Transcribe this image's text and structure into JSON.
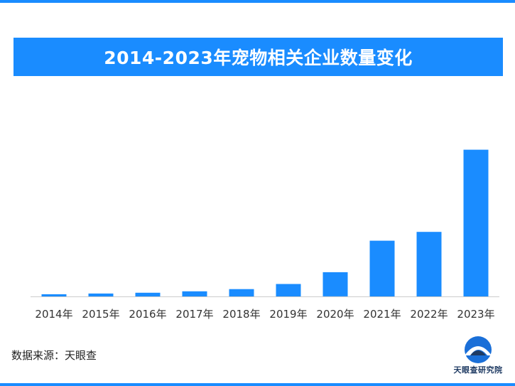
{
  "header": {
    "title": "2014-2023年宠物相关企业数量变化"
  },
  "colors": {
    "accent": "#1a8cff",
    "bar": "#1a8cff",
    "axis": "#cccccc",
    "logo_dark": "#1f3b63"
  },
  "chart_data": {
    "type": "bar",
    "title": "2014-2023年宠物相关企业数量变化",
    "xlabel": "",
    "ylabel": "",
    "categories": [
      "2014年",
      "2015年",
      "2016年",
      "2017年",
      "2018年",
      "2019年",
      "2020年",
      "2021年",
      "2022年",
      "2023年"
    ],
    "values": [
      1.5,
      2,
      2.5,
      3.5,
      5,
      8.5,
      16.5,
      38,
      44,
      100
    ],
    "ylim": [
      0,
      110
    ],
    "grid": false,
    "legend": "none",
    "value_note": "relative bar heights; no y-axis scale or data labels printed (2023 = 100)"
  },
  "footer": {
    "source": "数据来源：天眼查",
    "logo_text": "天眼查研究院",
    "logo_icon": "tianyancha-logo-icon"
  }
}
